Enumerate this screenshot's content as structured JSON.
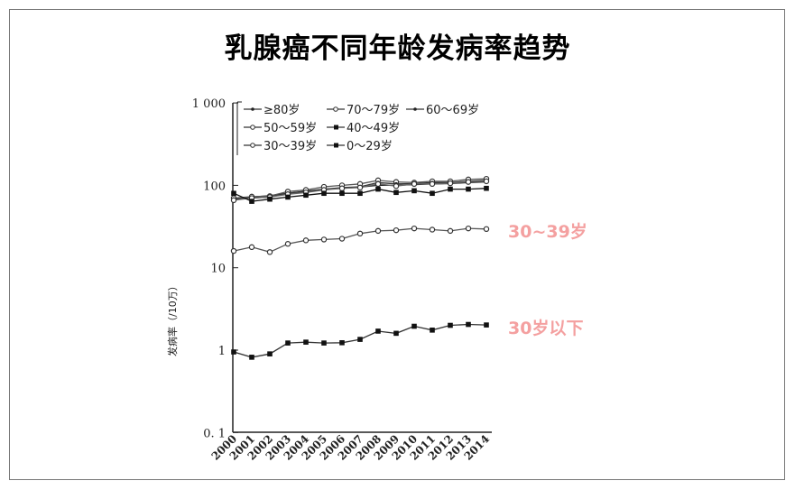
{
  "title": "乳腺癌不同年龄发病率趋势",
  "annotations": {
    "a3039": "30~39岁",
    "under30": "30岁以下"
  },
  "chart_data": {
    "type": "line",
    "title": "乳腺癌不同年龄发病率趋势",
    "xlabel": "",
    "ylabel": "发病率（/10万）",
    "yscale": "log",
    "ylim": [
      0.1,
      1000
    ],
    "yticks": [
      "0. 1",
      "1",
      "10",
      "100",
      "1 000"
    ],
    "yticks_values": [
      0.1,
      1,
      10,
      100,
      1000
    ],
    "x": [
      "2000",
      "2001",
      "2002",
      "2003",
      "2004",
      "2005",
      "2006",
      "2007",
      "2008",
      "2009",
      "2010",
      "2011",
      "2012",
      "2013",
      "2014"
    ],
    "legend_position": "top-left inside",
    "grid": false,
    "series": [
      {
        "name": "≥80岁",
        "marker": "filled-small",
        "values": [
          68,
          72,
          75,
          80,
          85,
          90,
          92,
          95,
          100,
          100,
          102,
          104,
          105,
          108,
          110
        ]
      },
      {
        "name": "70～79岁",
        "marker": "open",
        "values": [
          70,
          73,
          74,
          84,
          88,
          96,
          100,
          104,
          115,
          110,
          108,
          112,
          112,
          118,
          120
        ]
      },
      {
        "name": "60～69岁",
        "marker": "filled-small",
        "values": [
          68,
          70,
          72,
          80,
          84,
          90,
          94,
          96,
          108,
          104,
          105,
          108,
          108,
          112,
          115
        ]
      },
      {
        "name": "50～59岁",
        "marker": "open",
        "values": [
          66,
          70,
          72,
          78,
          82,
          88,
          92,
          94,
          104,
          98,
          104,
          104,
          106,
          110,
          112
        ]
      },
      {
        "name": "40～49岁",
        "marker": "filled",
        "values": [
          80,
          64,
          68,
          72,
          76,
          80,
          80,
          80,
          90,
          82,
          86,
          80,
          90,
          90,
          92
        ]
      },
      {
        "name": "30～39岁",
        "marker": "open",
        "values": [
          16,
          17.8,
          15.5,
          19.5,
          21.5,
          22,
          22.5,
          26,
          28,
          28.5,
          30,
          29,
          28,
          30,
          29.5
        ]
      },
      {
        "name": "0～29岁",
        "marker": "filled",
        "values": [
          0.95,
          0.82,
          0.9,
          1.22,
          1.25,
          1.22,
          1.23,
          1.35,
          1.7,
          1.6,
          1.95,
          1.75,
          2.0,
          2.05,
          2.02
        ]
      }
    ],
    "extra_series_note": "",
    "annotations": [
      "30~39岁",
      "30岁以下"
    ]
  }
}
